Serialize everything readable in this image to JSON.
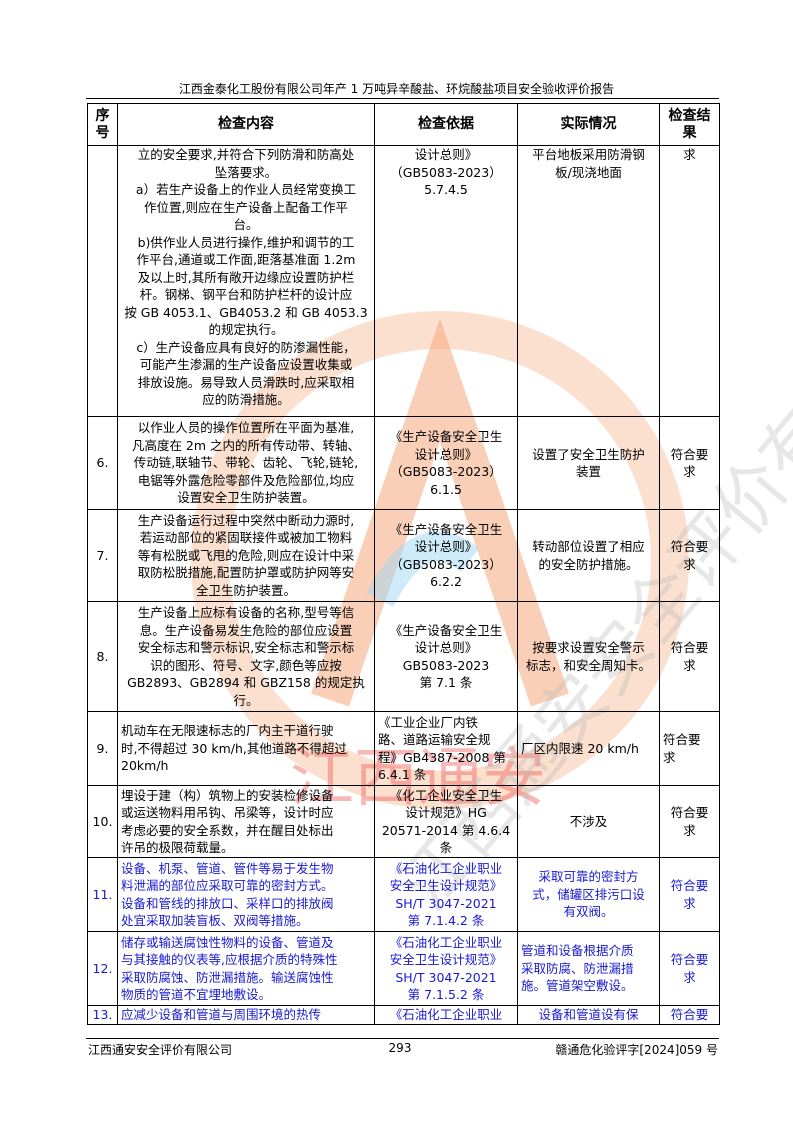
{
  "header": {
    "title": "江西金泰化工股份有限公司年产 1 万吨异辛酸盐、环烷酸盐项目安全验收评价报告"
  },
  "table": {
    "columns": [
      "序\n号",
      "检查内容",
      "检查依据",
      "实际情况",
      "检查结\n果"
    ],
    "rows": [
      {
        "no": "",
        "content": "立的安全要求,并符合下列防滑和防高处\n坠落要求。\na）若生产设备上的作业人员经常变换工\n作位置,则应在生产设备上配备工作平\n台。\nb)供作业人员进行操作,维护和调节的工\n作平台,通道或工作面,距落基准面 1.2m\n及以上时,其所有敞开边缘应设置防护栏\n杆。钢梯、钢平台和防护栏杆的设计应\n按  GB 4053.1、GB4053.2 和 GB 4053.3\n的规定执行。\nc）生产设备应具有良好的防渗漏性能，\n可能产生渗漏的生产设备应设置收集或\n排放设施。易导致人员滑跌时,应采取相\n应的防滑措施。",
        "basis": "设计总则》\n（GB5083-2023）\n5.7.4.5",
        "actual": "平台地板采用防滑钢\n板/现浇地面",
        "result": "求"
      },
      {
        "no": "6.",
        "content": "以作业人员的操作位置所在平面为基准,\n凡高度在 2m 之内的所有传动带、转轴、\n传动链,联轴节、带轮、齿轮、飞轮,链轮,\n电锯等外露危险零部件及危险部位,均应\n设置安全卫生防护装置。",
        "basis": "《生产设备安全卫生\n设计总则》\n（GB5083-2023）\n6.1.5",
        "actual": "设置了安全卫生防护\n装置",
        "result": "符合要\n求"
      },
      {
        "no": "7.",
        "content": "生产设备运行过程中突然中断动力源时,\n若运动部位的紧固联接件或被加工物料\n等有松脱或飞甩的危险,则应在设计中采\n取防松脱措施,配置防护罩或防护网等安\n全卫生防护装置。",
        "basis": "《生产设备安全卫生\n设计总则》\n（GB5083-2023）\n6.2.2",
        "actual": "转动部位设置了相应\n的安全防护措施。",
        "result": "符合要\n求"
      },
      {
        "no": "8.",
        "content": "生产设备上应标有设备的名称,型号等信\n息。生产设备易发生危险的部位应设置\n安全标志和警示标识,安全标志和警示标\n识的图形、符号、文字,颜色等应按\nGB2893、GB2894 和  GBZ158  的规定执\n行。",
        "basis": "《生产设备安全卫生\n设计总则》\nGB5083-2023\n第 7.1 条",
        "actual": "按要求设置安全警示\n标志，和安全周知卡。",
        "result": "符合要\n求"
      },
      {
        "no": "9.",
        "content": "机动车在无限速标志的厂内主干道行驶\n时,不得超过 30 km/h,其他道路不得超过\n20km/h",
        "basis": "《工业企业厂内铁\n路、道路运输安全规\n程》GB4387-2008 第\n6.4.1 条",
        "actual": "厂区内限速 20 km/h",
        "result": "符合要\n求"
      },
      {
        "no": "10.",
        "content": "埋设于建（构）筑物上的安装检修设备\n或运送物料用吊钩、吊梁等，设计时应\n考虑必要的安全系数，并在醒目处标出\n许吊的极限荷载量。",
        "basis": "《化工企业安全卫生\n设计规范》HG\n20571-2014 第 4.6.4\n条",
        "actual": "不涉及",
        "result": "符合要\n求"
      },
      {
        "no": "11.",
        "content": "设备、机泵、管道、管件等易于发生物\n料泄漏的部位应采取可靠的密封方式。\n设备和管线的排放口、采样口的排放阀\n处宜采取加装盲板、双阀等措施。",
        "basis": "《石油化工企业职业\n安全卫生设计规范》\nSH/T 3047-2021\n第 7.1.4.2 条",
        "actual": "采取可靠的密封方\n式，储罐区排污口设\n有双阀。",
        "result": "符合要\n求"
      },
      {
        "no": "12.",
        "content": "储存或输送腐蚀性物料的设备、管道及\n与其接触的仪表等,应根据介质的特殊性\n采取防腐蚀、防泄漏措施。输送腐蚀性\n物质的管道不宜埋地敷设。",
        "basis": "《石油化工企业职业\n安全卫生设计规范》\nSH/T 3047-2021\n第 7.1.5.2 条",
        "actual": "管道和设备根据介质\n采取防腐、防泄漏措\n施。管道架空敷设。",
        "result": "符合要\n求"
      },
      {
        "no": "13.",
        "content": "应减少设备和管道与周围环境的热传",
        "basis": "《石油化工企业职业",
        "actual": "设备和管道设有保",
        "result": "符合要"
      }
    ]
  },
  "footer": {
    "company": "江西通安安全评价有限公司",
    "page": "293",
    "doc_no": "赣通危化验评字[2024]059 号"
  },
  "watermark": {
    "text_gray": "江西通安安全评价有限公司",
    "text_red": "江西通安",
    "colors": {
      "orange": "#f6a77e",
      "red": "#f05050",
      "blue": "#7ec8ee",
      "gray": "#c8c8c8"
    }
  },
  "colors": {
    "blue_text": "#1a1ad0"
  }
}
